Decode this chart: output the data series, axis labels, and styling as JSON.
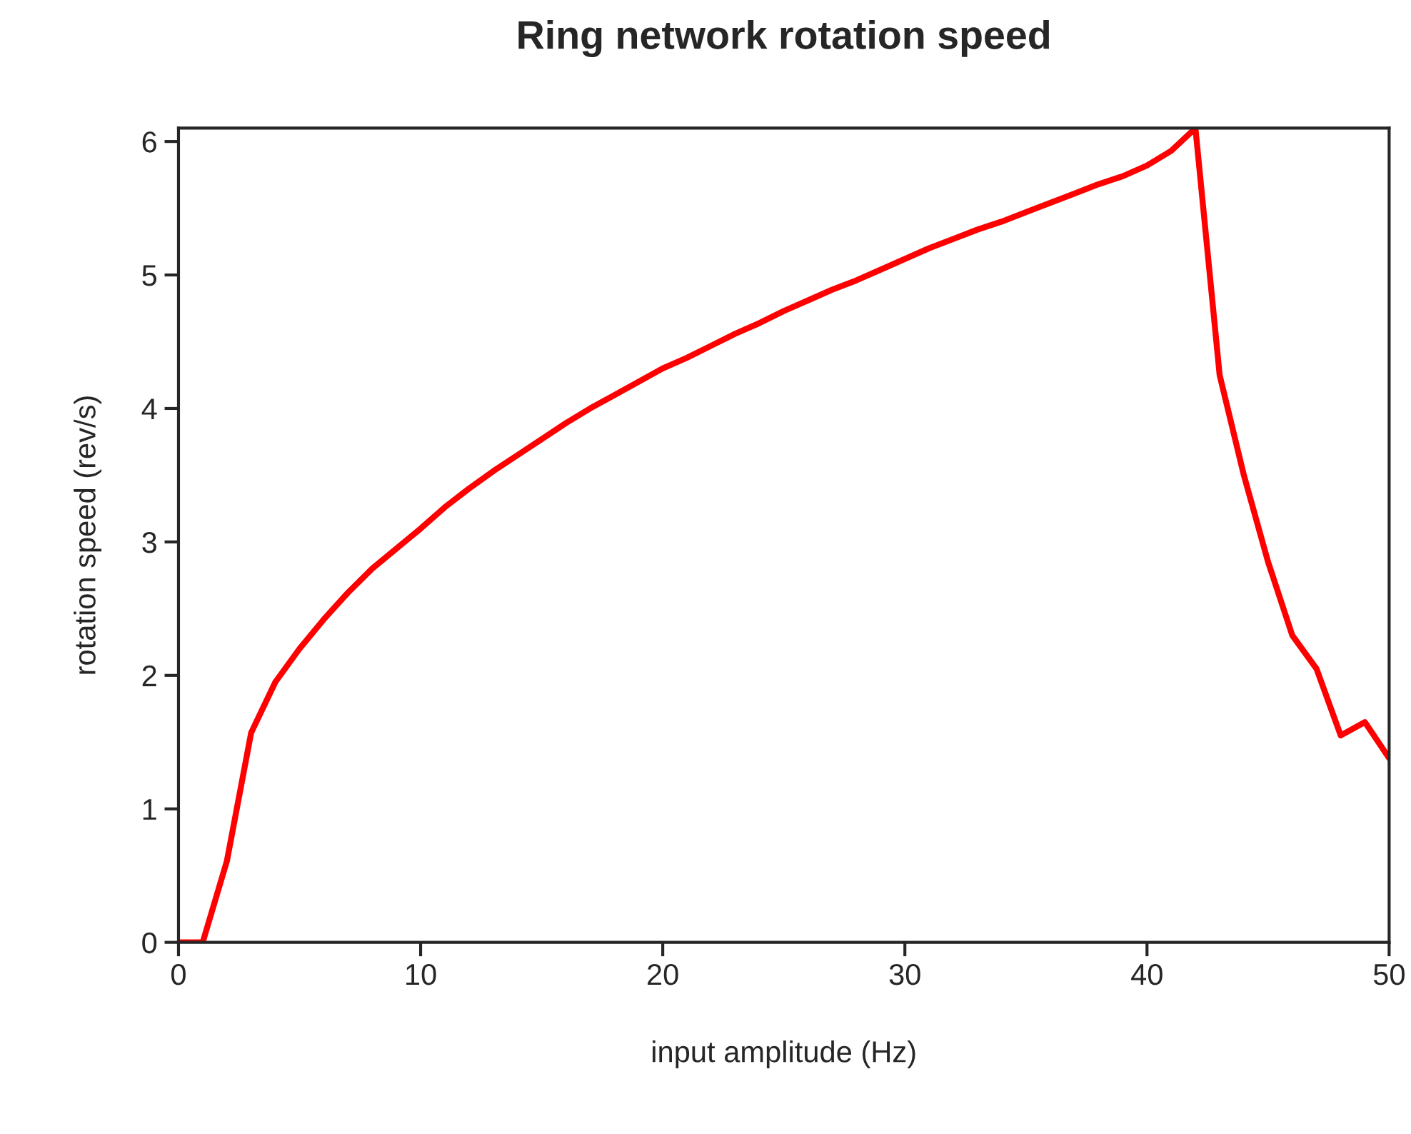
{
  "chart_data": {
    "type": "line",
    "title": "Ring network rotation speed",
    "xlabel": "input amplitude (Hz)",
    "ylabel": "rotation speed (rev/s)",
    "x": [
      0,
      1,
      2,
      3,
      4,
      5,
      6,
      7,
      8,
      9,
      10,
      11,
      12,
      13,
      14,
      15,
      16,
      17,
      18,
      19,
      20,
      21,
      22,
      23,
      24,
      25,
      26,
      27,
      28,
      29,
      30,
      31,
      32,
      33,
      34,
      35,
      36,
      37,
      38,
      39,
      40,
      41,
      42,
      43,
      44,
      45,
      46,
      47,
      48,
      49,
      50
    ],
    "series": [
      {
        "color": "#ff0000",
        "values": [
          0,
          0,
          0.61,
          1.57,
          1.95,
          2.2,
          2.42,
          2.62,
          2.8,
          2.95,
          3.1,
          3.26,
          3.4,
          3.53,
          3.65,
          3.77,
          3.89,
          4.0,
          4.1,
          4.2,
          4.3,
          4.38,
          4.47,
          4.56,
          4.64,
          4.73,
          4.81,
          4.89,
          4.96,
          5.04,
          5.12,
          5.2,
          5.27,
          5.34,
          5.4,
          5.47,
          5.54,
          5.61,
          5.68,
          5.74,
          5.82,
          5.93,
          6.1,
          4.25,
          3.5,
          2.85,
          2.3,
          2.05,
          1.55,
          1.65,
          1.38
        ]
      }
    ],
    "xlim": [
      0,
      50
    ],
    "ylim": [
      0,
      6.1
    ],
    "xticks": [
      0,
      10,
      20,
      30,
      40,
      50
    ],
    "yticks": [
      0,
      1,
      2,
      3,
      4,
      5,
      6
    ],
    "grid": false,
    "legend": false,
    "marker": "none",
    "line_style": "solid"
  }
}
